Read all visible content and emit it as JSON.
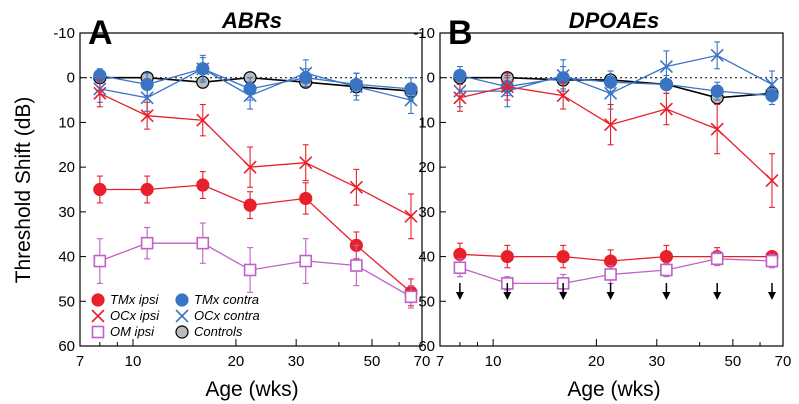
{
  "colors": {
    "tmx_ipsi": "#e8202a",
    "ocx_ipsi": "#e8202a",
    "om_ipsi": "#c060c8",
    "tmx_contra": "#3a74c4",
    "ocx_contra": "#3a74c4",
    "controls": "#000000",
    "controls_fill": "#bbbbbb",
    "arrow": "#000000"
  },
  "chart_data": [
    {
      "type": "line",
      "panel_letter": "A",
      "title": "ABRs",
      "xlabel": "Age (wks)",
      "ylabel": "Threshold Shift (dB)",
      "xscale": "log",
      "xlim": [
        7,
        70
      ],
      "ylim": [
        60,
        -10
      ],
      "yticks": [
        -10,
        0,
        10,
        20,
        30,
        40,
        50,
        60
      ],
      "ytick_labels": [
        "-10",
        "0",
        "10",
        "20",
        "30",
        "40",
        "50",
        "60"
      ],
      "xticks": [
        7,
        10,
        20,
        30,
        50,
        70
      ],
      "xtick_labels": [
        "7",
        "10",
        "20",
        "30",
        "50",
        "70"
      ],
      "reference_line": 0,
      "legend": {
        "placement": "bottom-left",
        "entries": [
          {
            "series": "TMx ipsi",
            "label": "TMx ipsi"
          },
          {
            "series": "TMx contra",
            "label": "TMx contra"
          },
          {
            "series": "OCx ipsi",
            "label": "OCx ipsi"
          },
          {
            "series": "OCx contra",
            "label": "OCx contra"
          },
          {
            "series": "OM ipsi",
            "label": "OM ipsi"
          },
          {
            "series": "Controls",
            "label": "Controls"
          }
        ]
      },
      "series": [
        {
          "name": "Controls",
          "marker": "circle-filled",
          "x": [
            8,
            11,
            16,
            22,
            32,
            45,
            65
          ],
          "y": [
            0,
            0,
            1,
            0,
            1,
            2,
            3
          ],
          "err": [
            0.8,
            0.8,
            0.8,
            0.8,
            0.8,
            0.8,
            0.8
          ]
        },
        {
          "name": "TMx contra",
          "marker": "circle",
          "x": [
            8,
            11,
            16,
            22,
            32,
            45,
            65
          ],
          "y": [
            -0.5,
            1.5,
            -2,
            2.5,
            0,
            1.5,
            2.5
          ],
          "err": [
            1.5,
            2.5,
            2.5,
            2.5,
            2,
            2.5,
            2.5
          ]
        },
        {
          "name": "OCx contra",
          "marker": "x",
          "x": [
            8,
            11,
            16,
            22,
            32,
            45,
            65
          ],
          "y": [
            2.5,
            4.5,
            -2,
            4,
            -1,
            2,
            5
          ],
          "err": [
            3,
            3,
            3,
            3,
            3,
            3,
            3
          ]
        },
        {
          "name": "OCx ipsi",
          "marker": "x",
          "x": [
            8,
            11,
            16,
            22,
            32,
            45,
            65
          ],
          "y": [
            3.5,
            8.5,
            9.5,
            20,
            19,
            24.5,
            31
          ],
          "err": [
            3,
            3,
            3.5,
            4.5,
            4,
            4,
            5
          ]
        },
        {
          "name": "TMx ipsi",
          "marker": "circle",
          "x": [
            8,
            11,
            16,
            22,
            32,
            45,
            65
          ],
          "y": [
            25,
            25,
            24,
            28.5,
            27,
            37.5,
            48
          ],
          "err": [
            3,
            3,
            3,
            3,
            3.5,
            3,
            3
          ]
        },
        {
          "name": "OM ipsi",
          "marker": "square-open",
          "x": [
            8,
            11,
            16,
            22,
            32,
            45,
            65
          ],
          "y": [
            41,
            37,
            37,
            43,
            41,
            42,
            49
          ],
          "err": [
            5,
            3.5,
            4.5,
            5,
            5,
            4.5,
            2.5
          ]
        }
      ]
    },
    {
      "type": "line",
      "panel_letter": "B",
      "title": "DPOAEs",
      "xlabel": "Age (wks)",
      "ylabel": "",
      "xscale": "log",
      "xlim": [
        7,
        70
      ],
      "ylim": [
        60,
        -10
      ],
      "yticks": [
        -10,
        0,
        10,
        20,
        30,
        40,
        50,
        60
      ],
      "ytick_labels": [
        "-10",
        "0",
        "10",
        "20",
        "30",
        "40",
        "50",
        "60"
      ],
      "xticks": [
        7,
        10,
        20,
        30,
        50,
        70
      ],
      "xtick_labels": [
        "7",
        "10",
        "20",
        "30",
        "50",
        "70"
      ],
      "reference_line": 0,
      "down_arrows_x": [
        8,
        11,
        16,
        22,
        32,
        45,
        65
      ],
      "series": [
        {
          "name": "Controls",
          "marker": "circle-filled",
          "x": [
            8,
            11,
            16,
            22,
            32,
            45,
            65
          ],
          "y": [
            0,
            0,
            0.5,
            0.5,
            1.5,
            4.5,
            3.5
          ],
          "err": [
            0.8,
            0.8,
            0.8,
            0.8,
            0.8,
            0.8,
            0.8
          ]
        },
        {
          "name": "TMx contra",
          "marker": "circle",
          "x": [
            8,
            11,
            16,
            22,
            32,
            45,
            65
          ],
          "y": [
            -0.5,
            2,
            0,
            1,
            1.5,
            3,
            4
          ],
          "err": [
            2,
            2,
            2.5,
            2.5,
            2,
            2,
            2
          ]
        },
        {
          "name": "OCx contra",
          "marker": "x",
          "x": [
            8,
            11,
            16,
            22,
            32,
            45,
            65
          ],
          "y": [
            3,
            3,
            -0.5,
            3.5,
            -2.5,
            -5,
            1.5
          ],
          "err": [
            3.5,
            3.5,
            3.5,
            3.5,
            3.5,
            3,
            3
          ]
        },
        {
          "name": "OCx ipsi",
          "marker": "x",
          "x": [
            8,
            11,
            16,
            22,
            32,
            45,
            65
          ],
          "y": [
            4.5,
            2,
            4,
            10.5,
            7,
            11.5,
            23
          ],
          "err": [
            3,
            3,
            3,
            4.5,
            3.5,
            5.5,
            6
          ]
        },
        {
          "name": "TMx ipsi",
          "marker": "circle",
          "x": [
            8,
            11,
            16,
            22,
            32,
            45,
            65
          ],
          "y": [
            39.5,
            40,
            40,
            41,
            40,
            40,
            40
          ],
          "err": [
            2.5,
            2.5,
            2.5,
            2.5,
            2.5,
            2,
            1
          ]
        },
        {
          "name": "OM ipsi",
          "marker": "square-open",
          "x": [
            8,
            11,
            16,
            22,
            32,
            45,
            65
          ],
          "y": [
            42.5,
            46,
            46,
            44,
            43,
            40.5,
            41
          ],
          "err": [
            2,
            1.5,
            2,
            2,
            1.5,
            1.5,
            1.5
          ]
        }
      ]
    }
  ]
}
